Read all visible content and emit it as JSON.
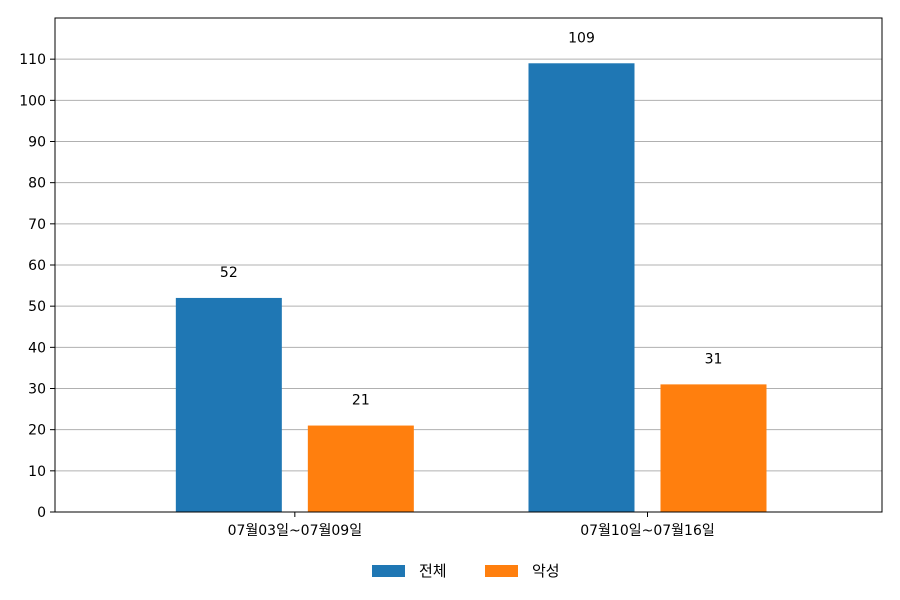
{
  "chart_data": {
    "type": "bar",
    "categories": [
      "07월03일~07월09일",
      "07월10일~07월16일"
    ],
    "series": [
      {
        "name": "전체",
        "values": [
          52,
          109
        ],
        "color": "#1f77b4"
      },
      {
        "name": "악성",
        "values": [
          21,
          31
        ],
        "color": "#ff7f0e"
      }
    ],
    "ylim": [
      0,
      120
    ],
    "yticks": [
      0,
      10,
      20,
      30,
      40,
      50,
      60,
      70,
      80,
      90,
      100,
      110
    ],
    "grid": "horizontal",
    "legend_position": "bottom-center",
    "data_labels": true
  }
}
